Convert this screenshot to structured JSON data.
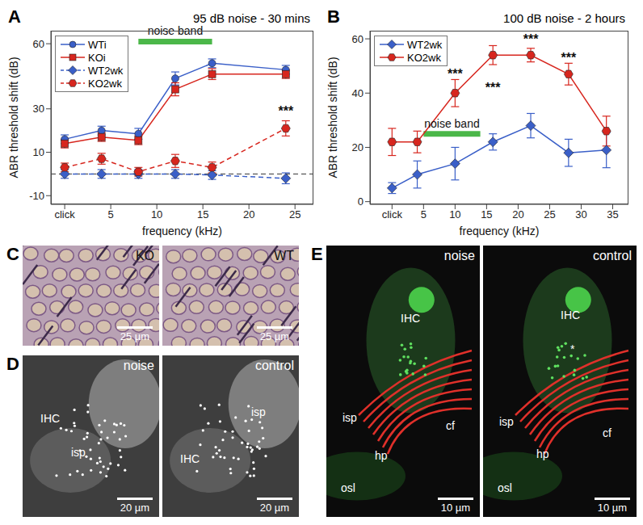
{
  "chart_data": [
    {
      "panel": "A",
      "type": "line",
      "title": "95 dB noise - 30 mins",
      "x_label": "frequency (kHz)",
      "y_label": "ABR threshold shift (dB)",
      "x": [
        0,
        4,
        8,
        12,
        16,
        24
      ],
      "xlim": [
        -1.5,
        27
      ],
      "xticks": [
        {
          "value": 0,
          "label": "click"
        },
        5,
        10,
        15,
        20,
        25
      ],
      "ylim": [
        -14,
        66
      ],
      "yticks": [
        -10,
        10,
        30,
        60
      ],
      "grid": false,
      "legend": "upper left",
      "reference_lines": [
        0
      ],
      "noise_band": {
        "label": "noise band",
        "x": [
          8,
          16
        ],
        "y": 61,
        "color": "#4bb749"
      },
      "annotations": [
        {
          "text": "***",
          "x": 24,
          "y": 29
        }
      ],
      "series": [
        {
          "name": "WTi",
          "color": "#3a5fc8",
          "marker": "circle",
          "line_style": "solid",
          "values": [
            16,
            20,
            18.5,
            44,
            51,
            48
          ],
          "errors": [
            2,
            2,
            2.5,
            3,
            2,
            2
          ]
        },
        {
          "name": "KOi",
          "color": "#d7261e",
          "marker": "square",
          "line_style": "solid",
          "values": [
            14,
            17,
            15.5,
            39,
            46,
            46
          ],
          "errors": [
            2,
            2,
            2,
            3,
            2.5,
            2
          ]
        },
        {
          "name": "WT2wk",
          "color": "#3a5fc8",
          "marker": "diamond",
          "line_style": "dashed",
          "values": [
            0,
            0,
            0,
            0,
            -0.5,
            -2
          ],
          "errors": [
            2,
            2,
            2,
            2,
            2,
            2.5
          ]
        },
        {
          "name": "KO2wk",
          "color": "#d7261e",
          "marker": "hexagon",
          "line_style": "dashed",
          "values": [
            3,
            7,
            1,
            6,
            3,
            21
          ],
          "errors": [
            2,
            2.5,
            2,
            3,
            2.5,
            3.5
          ]
        }
      ]
    },
    {
      "panel": "B",
      "type": "line",
      "title": "100 dB noise - 2 hours",
      "x_label": "frequency (kHz)",
      "y_label": "ABR threshold shift (dB)",
      "x": [
        0,
        4,
        10,
        16,
        22,
        28,
        34
      ],
      "xlim": [
        -3.5,
        37.5
      ],
      "xticks": [
        {
          "value": 0,
          "label": "click"
        },
        5,
        10,
        15,
        20,
        25,
        30,
        35
      ],
      "ylim": [
        -1,
        63
      ],
      "yticks": [
        0,
        20,
        40,
        60
      ],
      "grid": false,
      "legend": "upper left",
      "noise_band": {
        "label": "noise band",
        "x": [
          5,
          14
        ],
        "y": 25,
        "color": "#4bb749"
      },
      "annotations": [
        {
          "text": "***",
          "x": 10,
          "y": 47
        },
        {
          "text": "***",
          "x": 16,
          "y": 42
        },
        {
          "text": "***",
          "x": 22,
          "y": 60
        },
        {
          "text": "***",
          "x": 28,
          "y": 53
        }
      ],
      "series": [
        {
          "name": "WT2wk",
          "color": "#3a5fc8",
          "marker": "diamond",
          "line_style": "solid",
          "values": [
            5,
            10,
            14,
            22,
            28,
            18,
            19
          ],
          "errors": [
            2,
            5,
            6,
            3,
            4.5,
            5,
            6.5
          ]
        },
        {
          "name": "KO2wk",
          "color": "#d7261e",
          "marker": "hexagon",
          "line_style": "solid",
          "values": [
            22,
            22,
            40,
            54,
            54,
            47,
            26
          ],
          "errors": [
            5,
            4,
            5,
            3.5,
            2.5,
            4,
            5.5
          ]
        }
      ]
    }
  ],
  "image_panels": [
    {
      "panel": "C",
      "images": [
        {
          "label": "KO",
          "scale_bar": "25 µm"
        },
        {
          "label": "WT",
          "scale_bar": "25 µm"
        }
      ]
    },
    {
      "panel": "D",
      "images": [
        {
          "label": "noise",
          "scale_bar": "20 µm",
          "annotations": [
            "IHC",
            "isp"
          ]
        },
        {
          "label": "control",
          "scale_bar": "20 µm",
          "annotations": [
            "IHC",
            "isp"
          ]
        }
      ]
    },
    {
      "panel": "E",
      "images": [
        {
          "label": "noise",
          "scale_bar": "10 µm",
          "annotations": [
            "IHC",
            "isp",
            "hp",
            "osl",
            "cf"
          ]
        },
        {
          "label": "control",
          "scale_bar": "10 µm",
          "annotations": [
            "IHC",
            "*",
            "isp",
            "hp",
            "osl",
            "cf"
          ]
        }
      ]
    }
  ]
}
